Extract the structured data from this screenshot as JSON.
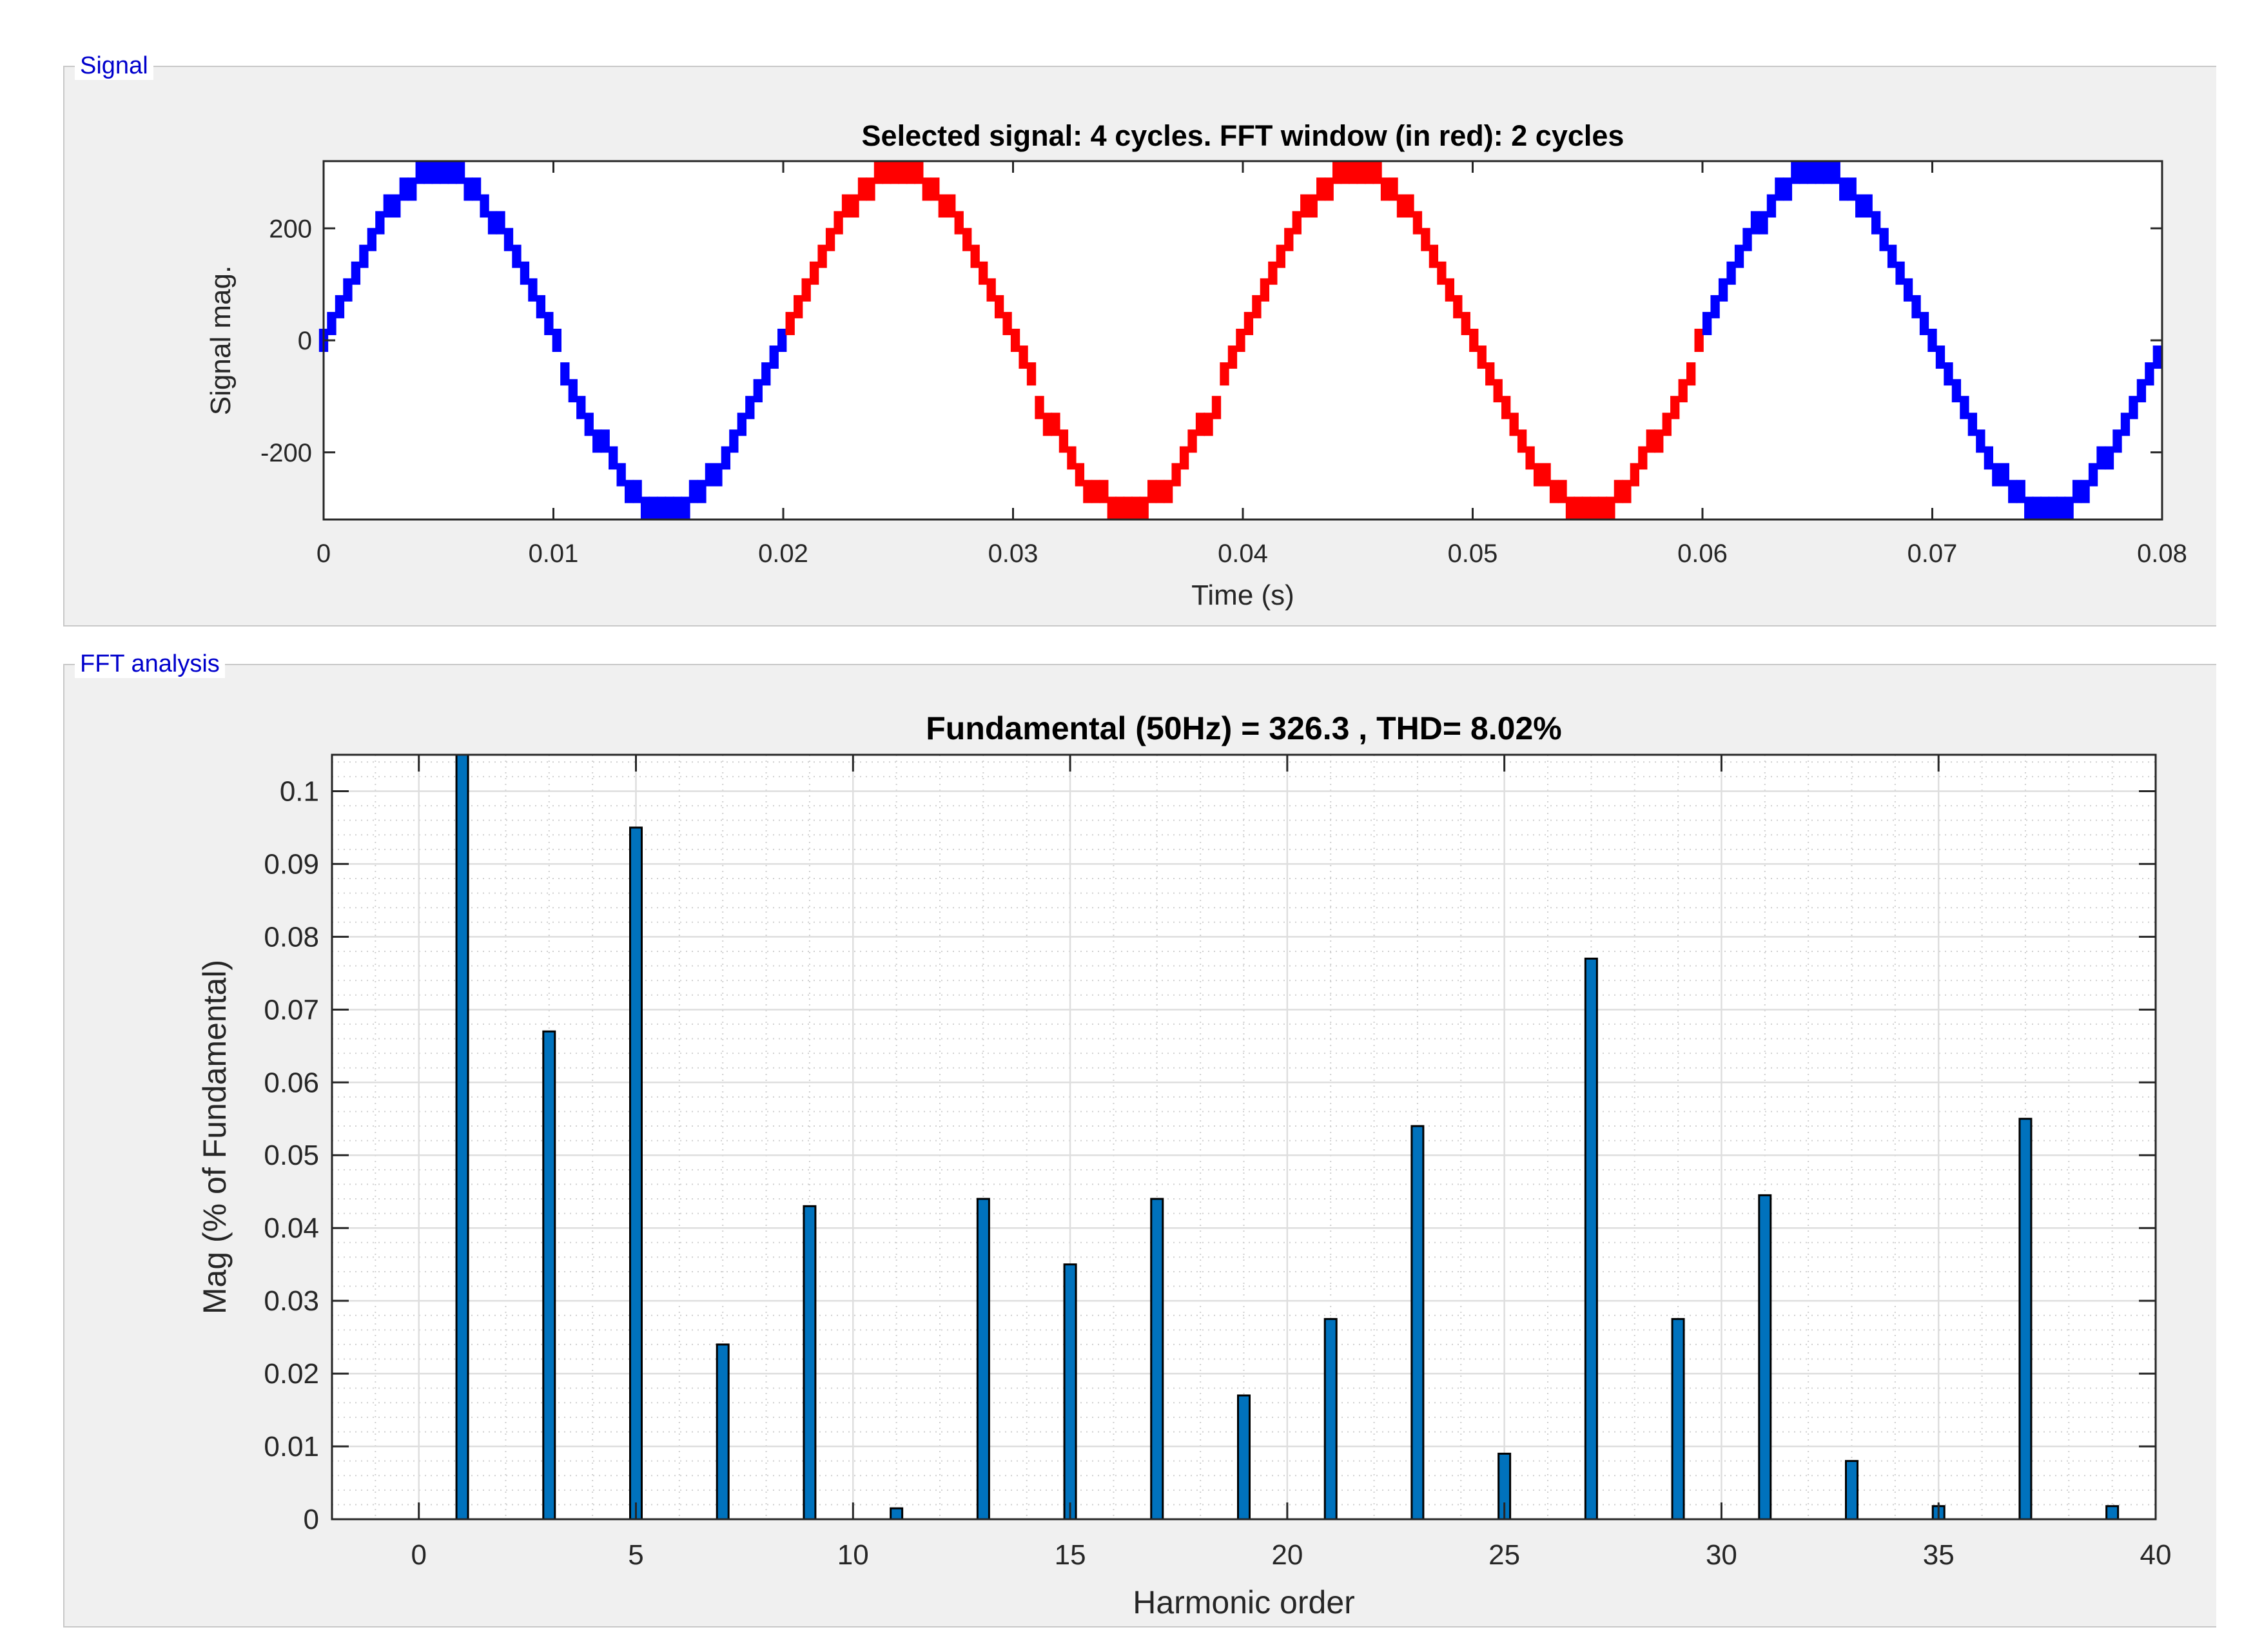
{
  "signal_panel": {
    "legend": "Signal"
  },
  "fft_panel": {
    "legend": "FFT analysis"
  },
  "colors": {
    "window": "#ff0000",
    "signal": "#0000ff",
    "bar_fill": "#0072bd",
    "legend_text": "#0000cc",
    "panel_bg": "#f0f0f0"
  },
  "chart_data": [
    {
      "type": "line",
      "title": "Selected signal: 4 cycles. FFT window (in red): 2 cycles",
      "xlabel": "Time (s)",
      "ylabel": "Signal mag.",
      "xlim": [
        0,
        0.08
      ],
      "ylim": [
        -320,
        320
      ],
      "xticks": [
        0,
        0.01,
        0.02,
        0.03,
        0.04,
        0.05,
        0.06,
        0.07,
        0.08
      ],
      "xtick_labels": [
        "0",
        "0.01",
        "0.02",
        "0.03",
        "0.04",
        "0.05",
        "0.06",
        "0.07",
        "0.08"
      ],
      "yticks": [
        -200,
        0,
        200
      ],
      "ytick_labels": [
        "-200",
        "0",
        "200"
      ],
      "grid": false,
      "signal": {
        "amplitude": 300,
        "frequency_hz": 50,
        "step_levels": 20,
        "sample_period_s": 0.00035
      },
      "fft_window": [
        0.02,
        0.06
      ]
    },
    {
      "type": "bar",
      "title": "Fundamental (50Hz) = 326.3 , THD= 8.02%",
      "xlabel": "Harmonic order",
      "ylabel": "Mag (% of Fundamental)",
      "xlim": [
        -2,
        40
      ],
      "ylim": [
        0,
        0.105
      ],
      "xticks": [
        0,
        5,
        10,
        15,
        20,
        25,
        30,
        35,
        40
      ],
      "xtick_labels": [
        "0",
        "5",
        "10",
        "15",
        "20",
        "25",
        "30",
        "35",
        "40"
      ],
      "yticks": [
        0,
        0.01,
        0.02,
        0.03,
        0.04,
        0.05,
        0.06,
        0.07,
        0.08,
        0.09,
        0.1
      ],
      "ytick_labels": [
        "0",
        "0.01",
        "0.02",
        "0.03",
        "0.04",
        "0.05",
        "0.06",
        "0.07",
        "0.08",
        "0.09",
        "0.1"
      ],
      "grid": true,
      "minor_grid": true,
      "harmonics": [
        1,
        3,
        5,
        7,
        9,
        11,
        13,
        15,
        17,
        19,
        21,
        23,
        25,
        27,
        29,
        31,
        33,
        35,
        37,
        39
      ],
      "values": [
        0.105,
        0.067,
        0.095,
        0.024,
        0.043,
        0.0015,
        0.044,
        0.035,
        0.044,
        0.017,
        0.0275,
        0.054,
        0.009,
        0.077,
        0.0275,
        0.0445,
        0.008,
        0.0018,
        0.055,
        0.0018
      ]
    }
  ]
}
